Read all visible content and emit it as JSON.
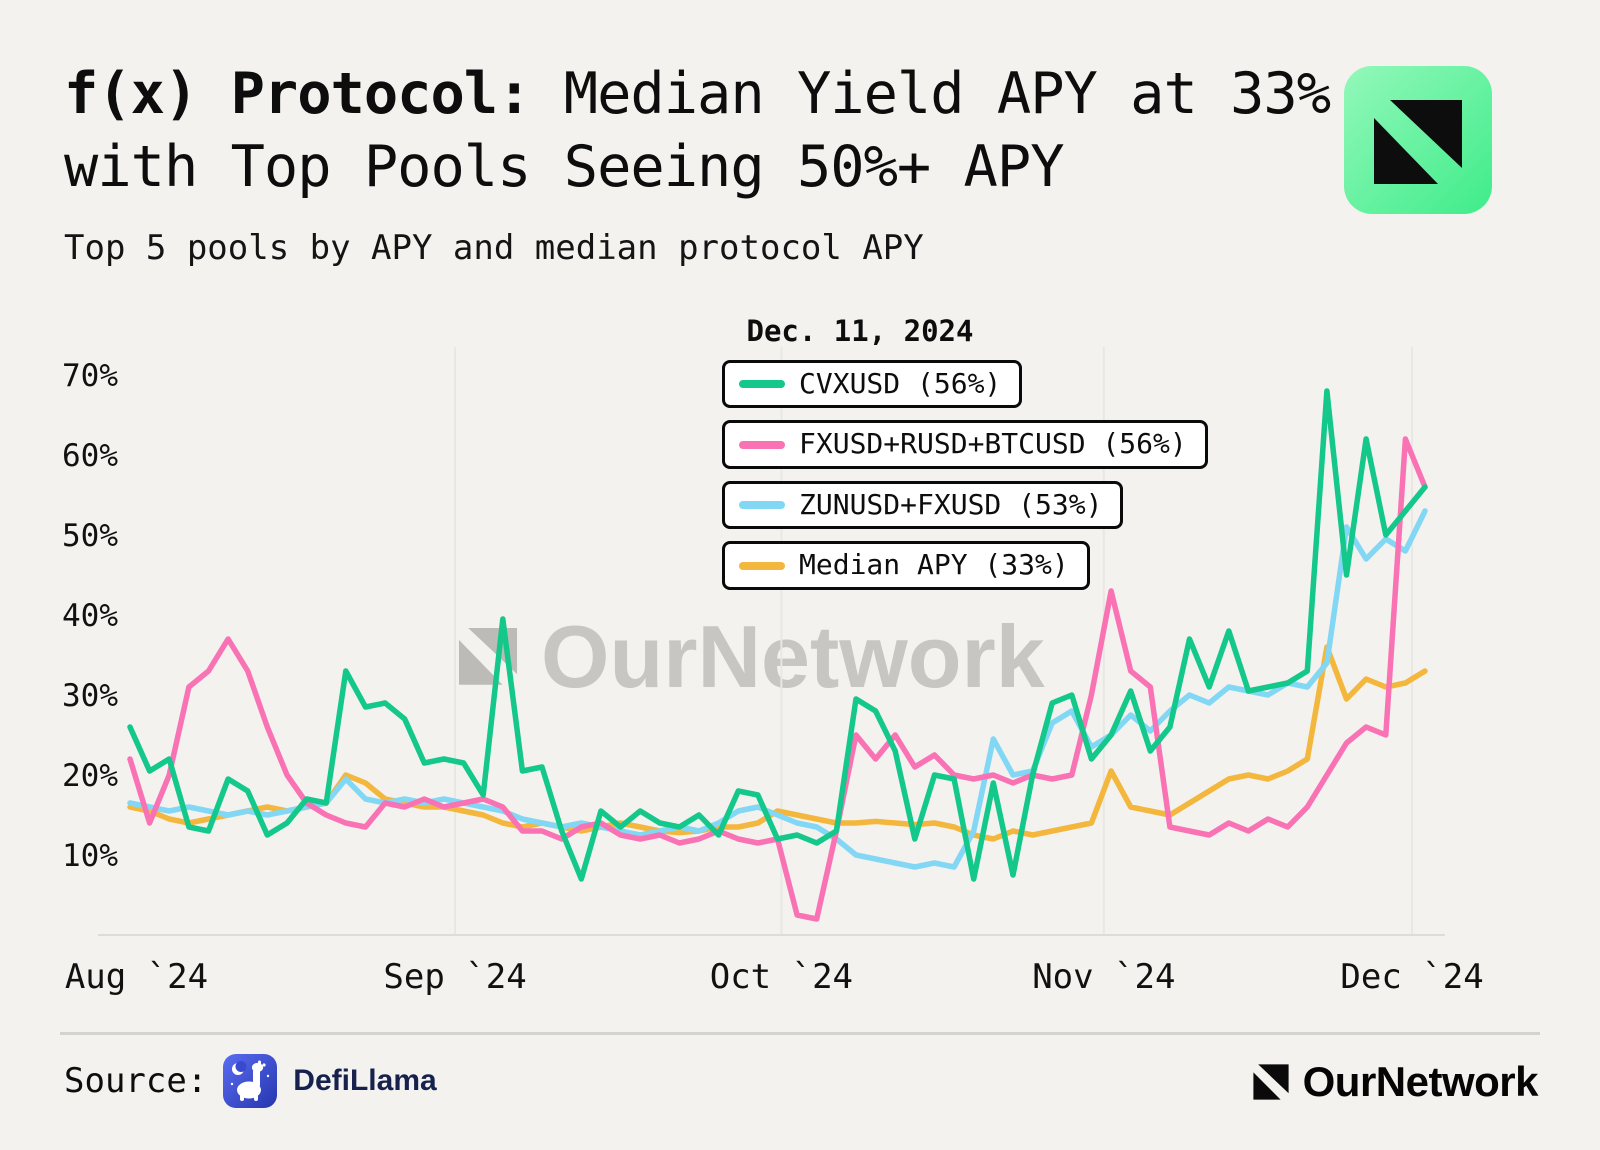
{
  "header": {
    "title_bold": "f(x) Protocol:",
    "title_rest": " Median Yield APY at 33% with Top Pools Seeing 50%+ APY",
    "subtitle": "Top 5 pools by APY and median protocol APY"
  },
  "legend": {
    "date": "Dec. 11, 2024"
  },
  "watermark": "OurNetwork",
  "footer": {
    "source_label": "Source:",
    "source_name": "DefiLlama",
    "brand": "OurNetwork"
  },
  "chart_data": {
    "type": "line",
    "title": "f(x) Protocol: Median Yield APY at 33% with Top Pools Seeing 50%+ APY",
    "subtitle": "Top 5 pools by APY and median protocol APY",
    "annotation_date": "Dec. 11, 2024",
    "x_range": [
      "Aug 1 2024",
      "Dec 11 2024"
    ],
    "ylim": [
      0,
      70
    ],
    "y_ticks": [
      70,
      60,
      50,
      40,
      30,
      20,
      10
    ],
    "y_unit": "%",
    "x_ticks": [
      {
        "label": "Aug `24",
        "f": 0.005
      },
      {
        "label": "Sep `24",
        "f": 0.251
      },
      {
        "label": "Oct `24",
        "f": 0.503
      },
      {
        "label": "Nov `24",
        "f": 0.752
      },
      {
        "label": "Dec `24",
        "f": 0.99
      }
    ],
    "legend_position": "top-center",
    "grid": "vertical-month-lines",
    "series": [
      {
        "name": "CVXUSD",
        "legend": "CVXUSD (56%)",
        "final_value": 56,
        "color": "#14c78a",
        "values": [
          26,
          20.5,
          22,
          13.5,
          13,
          19.5,
          18,
          12.5,
          14,
          17,
          16.5,
          33,
          28.5,
          29,
          27,
          21.5,
          22,
          21.5,
          17.5,
          39.5,
          20.5,
          21,
          13,
          7,
          15.5,
          13.5,
          15.5,
          14,
          13.5,
          15,
          12.5,
          18,
          17.5,
          12,
          12.5,
          11.5,
          13,
          29.5,
          28,
          23,
          12,
          20,
          19.5,
          7,
          19,
          7.5,
          20,
          29,
          30,
          22,
          25,
          30.5,
          23,
          26,
          37,
          31,
          38,
          30.5,
          31,
          31.5,
          33,
          68,
          45,
          62,
          50,
          53,
          56
        ]
      },
      {
        "name": "FXUSD+RUSD+BTCUSD",
        "legend": "FXUSD+RUSD+BTCUSD (56%)",
        "final_value": 56,
        "color": "#f973b4",
        "values": [
          22,
          14,
          20,
          31,
          33,
          37,
          33,
          26,
          20,
          16.5,
          15,
          14,
          13.5,
          16.5,
          16,
          17,
          16,
          16.5,
          17,
          16,
          13,
          13,
          12,
          13.5,
          14,
          12.5,
          12,
          12.5,
          11.5,
          12,
          13,
          12,
          11.5,
          12,
          2.5,
          2,
          13,
          25,
          22,
          25,
          21,
          22.5,
          20,
          19.5,
          20,
          19,
          20,
          19.5,
          20,
          30,
          43,
          33,
          31,
          13.5,
          13,
          12.5,
          14,
          13,
          14.5,
          13.5,
          16,
          20,
          24,
          26,
          25,
          62,
          56
        ]
      },
      {
        "name": "ZUNUSD+FXUSD",
        "legend": "ZUNUSD+FXUSD (53%)",
        "final_value": 53,
        "color": "#82d7f5",
        "values": [
          16.5,
          16,
          15.5,
          16,
          15.5,
          15,
          15.5,
          15,
          15.5,
          16,
          16.5,
          19.5,
          17,
          16.5,
          17,
          16.5,
          17,
          16.5,
          16,
          15.5,
          14.5,
          14,
          13.5,
          14,
          13.5,
          13,
          12.5,
          13,
          13.5,
          13,
          14,
          15.5,
          16,
          15,
          14,
          13.5,
          12,
          10,
          9.5,
          9,
          8.5,
          9,
          8.5,
          13,
          24.5,
          20,
          20.5,
          26.5,
          28,
          23.5,
          25,
          27.5,
          25.5,
          28,
          30,
          29,
          31,
          30.5,
          30,
          31.5,
          31,
          34,
          51,
          47,
          49.5,
          48,
          53
        ]
      },
      {
        "name": "Median APY",
        "legend": "Median APY (33%)",
        "final_value": 33,
        "color": "#f4b73d",
        "values": [
          16,
          15.5,
          14.5,
          14,
          14.5,
          15,
          15.5,
          16,
          15.5,
          16,
          16.5,
          20,
          19,
          17,
          16.5,
          16,
          16,
          15.5,
          15,
          14,
          13.5,
          14,
          13.5,
          13,
          13.5,
          14,
          13.5,
          13,
          12.8,
          13,
          13.5,
          13.5,
          14,
          15.5,
          15,
          14.5,
          14,
          14,
          14.2,
          14,
          13.8,
          14,
          13.5,
          12.5,
          12,
          13,
          12.5,
          13,
          13.5,
          14,
          20.5,
          16,
          15.5,
          15,
          16.5,
          18,
          19.5,
          20,
          19.5,
          20.5,
          22,
          36,
          29.5,
          32,
          31,
          31.5,
          33
        ]
      }
    ]
  }
}
